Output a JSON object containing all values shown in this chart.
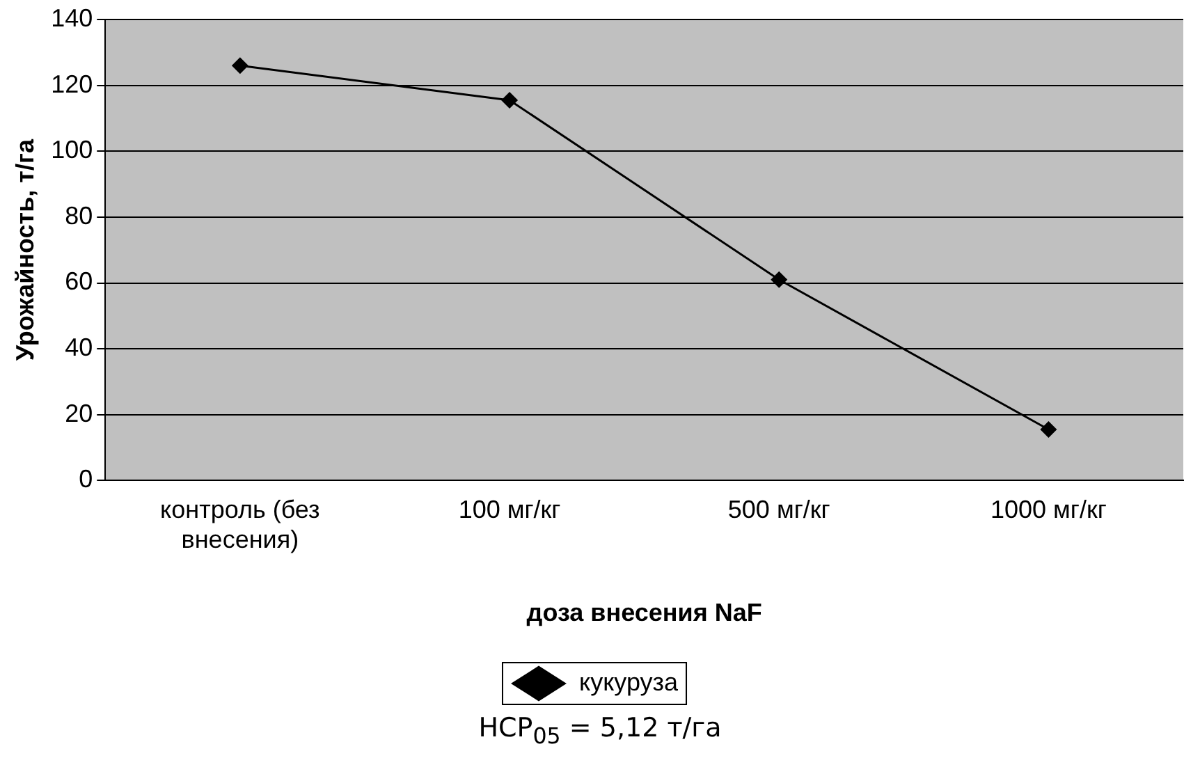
{
  "chart_data": {
    "type": "line",
    "xlabel": "доза внесения NaF",
    "ylabel": "Урожайность, т/га",
    "categories": [
      "контроль (без внесения)",
      "100 мг/кг",
      "500 мг/кг",
      "1000 мг/кг"
    ],
    "series": [
      {
        "name": "кукуруза",
        "color": "#000000",
        "values": [
          126,
          115.5,
          61,
          15.5
        ]
      }
    ],
    "ylim": [
      0,
      140
    ],
    "yticks": [
      0,
      20,
      40,
      60,
      80,
      100,
      120,
      140
    ],
    "grid": "y",
    "legend": "bottom",
    "marker": "diamond",
    "line_style": "solid",
    "annotations": [
      "НСР$_{05}$ = 5,12 т/га"
    ]
  }
}
